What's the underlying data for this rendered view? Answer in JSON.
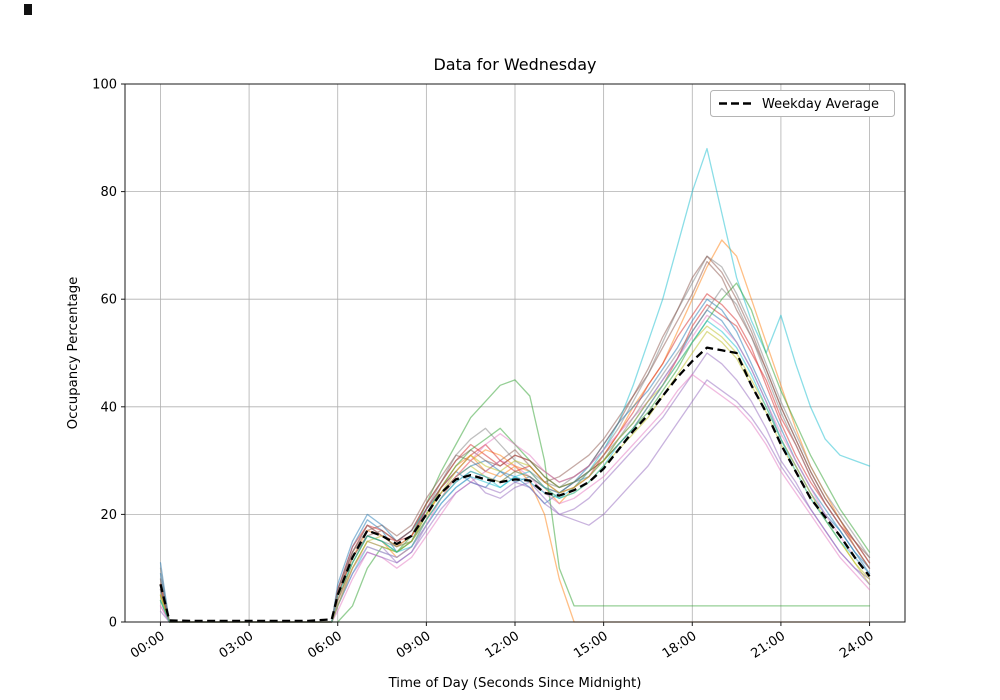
{
  "artifact_color": "#111111",
  "chart_data": {
    "type": "line",
    "title": "Data for Wednesday",
    "xlabel": "Time of Day (Seconds Since Midnight)",
    "ylabel": "Occupancy Percentage",
    "grid": true,
    "ylim": [
      0,
      100
    ],
    "xlim_hours": [
      -1.2,
      25.2
    ],
    "y_ticks": [
      0,
      20,
      40,
      60,
      80,
      100
    ],
    "x_ticks_hours": [
      0,
      3,
      6,
      9,
      12,
      15,
      18,
      21,
      24
    ],
    "x_tick_labels": [
      "00:00",
      "03:00",
      "06:00",
      "09:00",
      "12:00",
      "15:00",
      "18:00",
      "21:00",
      "24:00"
    ],
    "legend": {
      "label": "Weekday Average",
      "position": "upper right",
      "line_color": "#000000",
      "line_style": "dashed"
    },
    "grid_color": "#b0b0b0",
    "axis_color": "#1a1a1a",
    "series_alpha": 0.5,
    "x_hours": [
      0,
      0.3,
      1,
      2,
      3,
      4,
      5,
      5.8,
      6,
      6.5,
      7,
      7.5,
      8,
      8.5,
      9,
      9.5,
      10,
      10.5,
      11,
      11.5,
      12,
      12.5,
      13,
      13.5,
      14,
      14.5,
      15,
      15.5,
      16,
      16.5,
      17,
      17.5,
      18,
      18.5,
      19,
      19.5,
      20,
      20.5,
      21,
      21.5,
      22,
      22.5,
      23,
      23.5,
      24
    ],
    "series": [
      {
        "color": "#1f77b4",
        "values": [
          11,
          0,
          0,
          0,
          0,
          0,
          0,
          0,
          6,
          14,
          19,
          17,
          13,
          15,
          21,
          25,
          28,
          26,
          25,
          28,
          27,
          25,
          22,
          24,
          26,
          27,
          30,
          34,
          37,
          41,
          45,
          49,
          54,
          58,
          56,
          52,
          47,
          41,
          34,
          29,
          24,
          20,
          17,
          13,
          9
        ]
      },
      {
        "color": "#ff7f0e",
        "values": [
          7,
          0,
          0,
          0,
          0,
          0,
          0,
          0,
          4,
          11,
          16,
          15,
          12,
          14,
          19,
          25,
          29,
          31,
          28,
          27,
          29,
          28,
          25,
          22,
          25,
          28,
          31,
          35,
          40,
          44,
          48,
          54,
          60,
          66,
          71,
          68,
          60,
          52,
          44,
          36,
          29,
          24,
          19,
          14,
          10
        ]
      },
      {
        "color": "#2ca02c",
        "values": [
          5,
          0,
          0,
          0,
          0,
          0,
          0,
          0,
          0,
          3,
          10,
          14,
          13,
          16,
          22,
          28,
          33,
          38,
          41,
          44,
          45,
          42,
          30,
          10,
          3,
          3,
          3,
          3,
          3,
          3,
          3,
          3,
          3,
          3,
          3,
          3,
          3,
          3,
          3,
          3,
          3,
          3,
          3,
          3,
          3
        ]
      },
      {
        "color": "#d62728",
        "values": [
          6,
          0,
          0,
          0,
          0,
          0,
          0,
          0,
          5,
          13,
          18,
          16,
          15,
          17,
          22,
          26,
          30,
          33,
          31,
          29,
          31,
          30,
          27,
          25,
          26,
          28,
          30,
          33,
          36,
          40,
          44,
          49,
          55,
          59,
          57,
          55,
          50,
          45,
          38,
          33,
          27,
          22,
          18,
          15,
          11
        ]
      },
      {
        "color": "#9467bd",
        "values": [
          0,
          0,
          0,
          0,
          0,
          0,
          0,
          0,
          3,
          10,
          15,
          14,
          11,
          13,
          18,
          22,
          25,
          27,
          24,
          23,
          25,
          26,
          23,
          20,
          21,
          23,
          26,
          29,
          32,
          35,
          38,
          42,
          46,
          50,
          48,
          45,
          41,
          36,
          30,
          26,
          21,
          17,
          13,
          10,
          8
        ]
      },
      {
        "color": "#8c564b",
        "values": [
          8,
          0,
          0,
          0,
          0,
          0,
          0,
          0,
          6,
          13,
          17,
          18,
          16,
          18,
          23,
          27,
          31,
          30,
          28,
          30,
          32,
          29,
          26,
          27,
          29,
          31,
          34,
          38,
          42,
          46,
          51,
          56,
          61,
          67,
          64,
          58,
          53,
          47,
          40,
          34,
          28,
          23,
          19,
          15,
          12
        ]
      },
      {
        "color": "#e377c2",
        "values": [
          3,
          0,
          0,
          0,
          0,
          0,
          0,
          0,
          2,
          8,
          13,
          12,
          10,
          12,
          16,
          20,
          24,
          26,
          28,
          30,
          29,
          27,
          24,
          22,
          23,
          25,
          27,
          30,
          33,
          36,
          39,
          43,
          46,
          44,
          42,
          40,
          37,
          33,
          28,
          24,
          20,
          16,
          12,
          9,
          6
        ]
      },
      {
        "color": "#7f7f7f",
        "values": [
          10,
          0,
          0,
          0,
          0,
          0,
          0,
          0,
          5,
          12,
          16,
          15,
          14,
          16,
          21,
          26,
          31,
          34,
          36,
          33,
          30,
          28,
          26,
          25,
          27,
          29,
          32,
          36,
          41,
          46,
          52,
          58,
          63,
          68,
          66,
          61,
          55,
          48,
          41,
          35,
          29,
          24,
          20,
          16,
          12
        ]
      },
      {
        "color": "#bcbd22",
        "values": [
          4,
          0,
          0,
          0,
          0,
          0,
          0,
          0,
          4,
          10,
          15,
          16,
          14,
          15,
          19,
          23,
          27,
          29,
          27,
          26,
          28,
          27,
          25,
          23,
          24,
          26,
          29,
          32,
          35,
          38,
          42,
          46,
          50,
          54,
          52,
          49,
          44,
          39,
          33,
          28,
          23,
          19,
          15,
          11,
          7
        ]
      },
      {
        "color": "#17becf",
        "values": [
          6,
          0,
          0,
          0,
          0,
          0,
          0,
          0,
          3,
          9,
          14,
          13,
          12,
          14,
          18,
          22,
          25,
          27,
          26,
          25,
          27,
          26,
          24,
          23,
          25,
          28,
          32,
          37,
          44,
          52,
          60,
          70,
          80,
          88,
          76,
          64,
          56,
          50,
          57,
          48,
          40,
          34,
          31,
          30,
          29
        ]
      },
      {
        "color": "#1f77b4",
        "values": [
          9,
          0,
          0,
          0,
          0,
          0,
          0,
          0,
          7,
          15,
          20,
          18,
          15,
          17,
          21,
          24,
          27,
          29,
          30,
          28,
          26,
          27,
          25,
          24,
          26,
          29,
          33,
          37,
          40,
          43,
          47,
          51,
          56,
          60,
          58,
          54,
          48,
          42,
          36,
          30,
          25,
          21,
          17,
          13,
          10
        ]
      },
      {
        "color": "#ff7f0e",
        "values": [
          5,
          0,
          0,
          0,
          0,
          0,
          0,
          0,
          5,
          12,
          17,
          16,
          14,
          16,
          20,
          24,
          27,
          30,
          32,
          31,
          29,
          26,
          20,
          8,
          0,
          0,
          0,
          0,
          0,
          0,
          0,
          0,
          0,
          0,
          0,
          0,
          0,
          0,
          0,
          0,
          0,
          0,
          0,
          0,
          0
        ]
      },
      {
        "color": "#2ca02c",
        "values": [
          4,
          0,
          0,
          0,
          0,
          0,
          0,
          0,
          4,
          11,
          16,
          15,
          13,
          15,
          20,
          25,
          29,
          32,
          34,
          36,
          33,
          30,
          27,
          25,
          26,
          28,
          30,
          33,
          36,
          39,
          43,
          47,
          52,
          56,
          60,
          63,
          58,
          50,
          43,
          37,
          31,
          26,
          21,
          17,
          13
        ]
      },
      {
        "color": "#d62728",
        "values": [
          7,
          0,
          0,
          0,
          0,
          0,
          0,
          0,
          6,
          14,
          18,
          17,
          15,
          16,
          21,
          25,
          28,
          31,
          33,
          30,
          28,
          29,
          26,
          24,
          25,
          27,
          31,
          35,
          39,
          44,
          48,
          53,
          57,
          61,
          59,
          56,
          51,
          44,
          37,
          31,
          26,
          22,
          18,
          14,
          10
        ]
      },
      {
        "color": "#9467bd",
        "values": [
          2,
          0,
          0,
          0,
          0,
          0,
          0,
          0,
          3,
          9,
          13,
          12,
          11,
          13,
          17,
          21,
          24,
          26,
          25,
          24,
          26,
          25,
          22,
          20,
          19,
          18,
          20,
          23,
          26,
          29,
          33,
          37,
          41,
          45,
          43,
          41,
          38,
          34,
          29,
          25,
          21,
          17,
          13,
          10,
          7
        ]
      },
      {
        "color": "#8c564b",
        "values": [
          6,
          0,
          0,
          0,
          0,
          0,
          0,
          0,
          5,
          12,
          16,
          17,
          15,
          17,
          22,
          26,
          30,
          32,
          30,
          29,
          31,
          30,
          28,
          26,
          27,
          29,
          33,
          37,
          42,
          47,
          53,
          58,
          64,
          68,
          65,
          60,
          54,
          47,
          40,
          34,
          28,
          23,
          19,
          15,
          11
        ]
      },
      {
        "color": "#e377c2",
        "values": [
          3,
          0,
          0,
          0,
          0,
          0,
          0,
          0,
          4,
          10,
          14,
          13,
          12,
          14,
          18,
          23,
          27,
          30,
          33,
          35,
          33,
          31,
          28,
          26,
          27,
          29,
          32,
          35,
          38,
          41,
          45,
          49,
          53,
          57,
          55,
          52,
          47,
          41,
          35,
          30,
          25,
          20,
          16,
          12,
          9
        ]
      },
      {
        "color": "#7f7f7f",
        "values": [
          8,
          0,
          0,
          0,
          0,
          0,
          0,
          0,
          6,
          13,
          18,
          16,
          14,
          15,
          19,
          23,
          26,
          28,
          27,
          26,
          28,
          27,
          25,
          24,
          26,
          28,
          31,
          34,
          38,
          42,
          46,
          50,
          54,
          58,
          62,
          59,
          53,
          46,
          39,
          33,
          27,
          22,
          18,
          14,
          10
        ]
      },
      {
        "color": "#bcbd22",
        "values": [
          5,
          0,
          0,
          0,
          0,
          0,
          0,
          0,
          3,
          10,
          15,
          14,
          13,
          15,
          20,
          24,
          28,
          31,
          29,
          28,
          30,
          29,
          26,
          24,
          25,
          27,
          30,
          34,
          37,
          41,
          44,
          48,
          52,
          55,
          53,
          50,
          45,
          40,
          34,
          29,
          24,
          19,
          15,
          11,
          8
        ]
      },
      {
        "color": "#17becf",
        "values": [
          4,
          0,
          0,
          0,
          0,
          0,
          0,
          0,
          5,
          11,
          16,
          15,
          13,
          14,
          19,
          23,
          26,
          28,
          27,
          25,
          27,
          28,
          25,
          23,
          24,
          26,
          29,
          33,
          36,
          40,
          44,
          48,
          52,
          56,
          54,
          51,
          46,
          40,
          34,
          28,
          23,
          19,
          15,
          12,
          9
        ]
      }
    ],
    "average": {
      "label": "Weekday Average",
      "color": "#000000",
      "dashed": true,
      "values": [
        7,
        0.3,
        0.2,
        0.2,
        0.2,
        0.2,
        0.2,
        0.5,
        5,
        12,
        17,
        16,
        14.5,
        16,
        20,
        24,
        26.5,
        27.3,
        26.5,
        26,
        26.5,
        26.3,
        24,
        23.5,
        24.5,
        26,
        28.5,
        32,
        35.5,
        38.5,
        42,
        45.5,
        48.5,
        51,
        50.5,
        50,
        44,
        39,
        33,
        28,
        23,
        19.5,
        16,
        12,
        8.5
      ]
    }
  }
}
